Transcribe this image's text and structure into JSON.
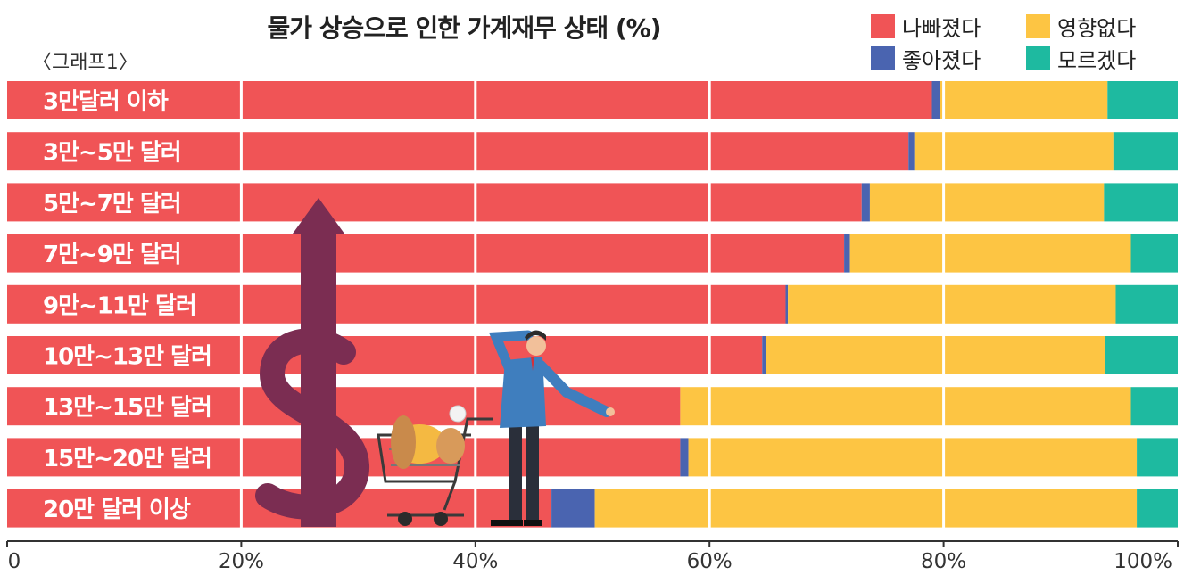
{
  "chart_data": {
    "type": "bar",
    "orientation": "horizontal",
    "stacked": true,
    "title": "물가 상승으로 인한 가계재무 상태 (%)",
    "subtitle": "〈그래프1〉",
    "categories": [
      "3만달러 이하",
      "3만~5만 달러",
      "5만~7만 달러",
      "7만~9만 달러",
      "9만~11만 달러",
      "10만~13만 달러",
      "13만~15만 달러",
      "15만~20만 달러",
      "20만 달러 이상"
    ],
    "series": [
      {
        "name": "나빠졌다",
        "color": "#F05456",
        "values": [
          79,
          77,
          73,
          71.5,
          66.5,
          64.5,
          57.5,
          57.5,
          46.5
        ]
      },
      {
        "name": "좋아졌다",
        "color": "#4A64B0",
        "values": [
          0.7,
          0.5,
          0.7,
          0.5,
          0.2,
          0.3,
          0,
          0.7,
          3.7
        ]
      },
      {
        "name": "영향없다",
        "color": "#FDC543",
        "values": [
          14.3,
          17,
          20,
          24,
          28,
          29,
          38.5,
          38.3,
          46.3
        ]
      },
      {
        "name": "모르겠다",
        "color": "#1EBAA0",
        "values": [
          6,
          5.5,
          6.3,
          4,
          5.3,
          6.2,
          4,
          3.5,
          3.5
        ]
      }
    ],
    "xlim": [
      0,
      100
    ],
    "xticks": [
      "0",
      "20%",
      "40%",
      "60%",
      "80%",
      "100%"
    ],
    "legend_position": "top-right",
    "grid": true
  }
}
